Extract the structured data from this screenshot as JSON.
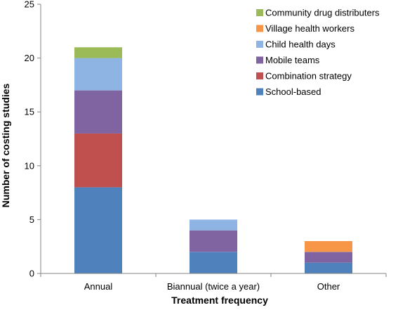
{
  "chart_data": {
    "type": "bar",
    "stacked": true,
    "title": "",
    "xlabel": "Treatment frequency",
    "ylabel": "Number of costing studies",
    "ylim": [
      0,
      25
    ],
    "yticks": [
      0,
      5,
      10,
      15,
      20,
      25
    ],
    "grid": false,
    "legend_position": "top-right",
    "categories": [
      "Annual",
      "Biannual (twice a year)",
      "Other"
    ],
    "series": [
      {
        "name": "School-based",
        "color": "#4F81BD",
        "values": [
          8,
          2,
          1
        ]
      },
      {
        "name": "Combination strategy",
        "color": "#C0504D",
        "values": [
          5,
          0,
          0
        ]
      },
      {
        "name": "Mobile teams",
        "color": "#8064A2",
        "values": [
          4,
          2,
          1
        ]
      },
      {
        "name": "Child health days",
        "color": "#8DB4E2",
        "values": [
          3,
          1,
          0
        ]
      },
      {
        "name": "Village health workers",
        "color": "#F79646",
        "values": [
          0,
          0,
          1
        ]
      },
      {
        "name": "Community drug distributers",
        "color": "#9BBB59",
        "values": [
          1,
          0,
          0
        ]
      }
    ]
  }
}
